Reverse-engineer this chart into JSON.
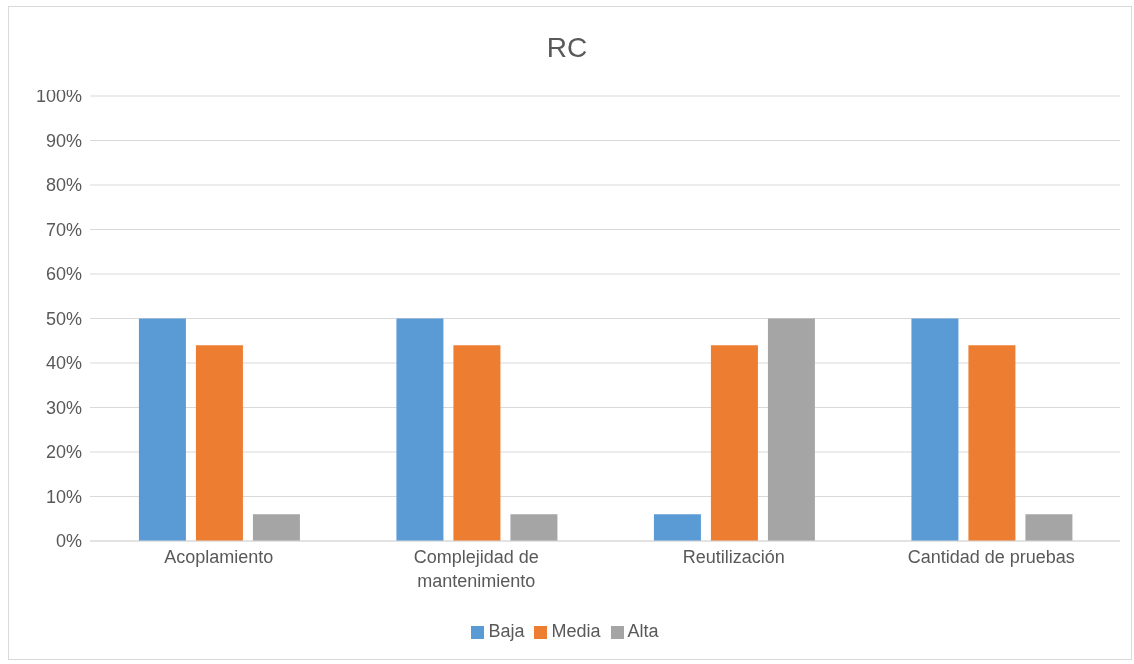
{
  "chart_data": {
    "type": "bar",
    "title": "RC",
    "categories": [
      "Acoplamiento",
      "Complejidad de mantenimiento",
      "Reutilización",
      "Cantidad de pruebas"
    ],
    "series": [
      {
        "name": "Baja",
        "color": "#5b9bd5",
        "values": [
          50,
          50,
          6,
          50
        ]
      },
      {
        "name": "Media",
        "color": "#ed7d31",
        "values": [
          44,
          44,
          44,
          44
        ]
      },
      {
        "name": "Alta",
        "color": "#a5a5a5",
        "values": [
          6,
          6,
          50,
          6
        ]
      }
    ],
    "ylim": [
      0,
      100
    ],
    "yticks": [
      {
        "value": 0,
        "label": "0%"
      },
      {
        "value": 10,
        "label": "10%"
      },
      {
        "value": 20,
        "label": "20%"
      },
      {
        "value": 30,
        "label": "30%"
      },
      {
        "value": 40,
        "label": "40%"
      },
      {
        "value": 50,
        "label": "50%"
      },
      {
        "value": 60,
        "label": "60%"
      },
      {
        "value": 70,
        "label": "70%"
      },
      {
        "value": 80,
        "label": "80%"
      },
      {
        "value": 90,
        "label": "90%"
      },
      {
        "value": 100,
        "label": "100%"
      }
    ],
    "grid": "y",
    "legend": "bottom"
  }
}
